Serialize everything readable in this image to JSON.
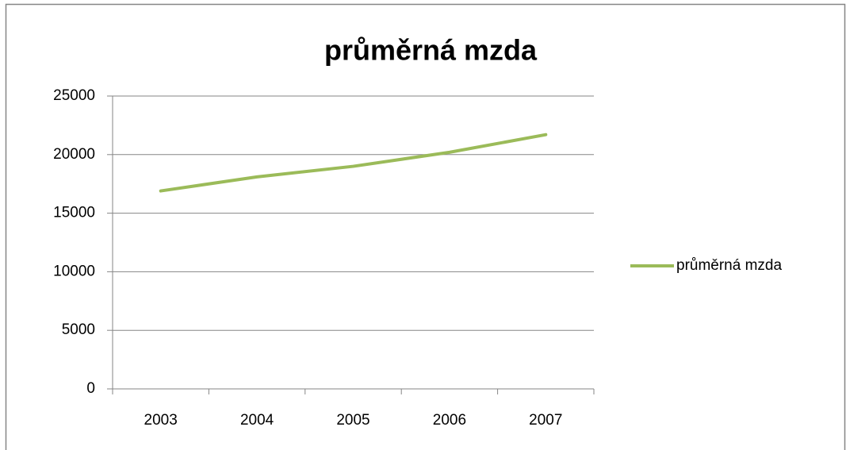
{
  "chart_data": {
    "type": "line",
    "title": "průměrná mzda",
    "categories": [
      "2003",
      "2004",
      "2005",
      "2006",
      "2007"
    ],
    "series": [
      {
        "name": "průměrná mzda",
        "color": "#9bbb59",
        "values": [
          16900,
          18100,
          19000,
          20200,
          21700
        ]
      }
    ],
    "ylim": [
      0,
      25000
    ],
    "yticks": [
      0,
      5000,
      10000,
      15000,
      20000,
      25000
    ],
    "grid": true,
    "legend": "right"
  }
}
